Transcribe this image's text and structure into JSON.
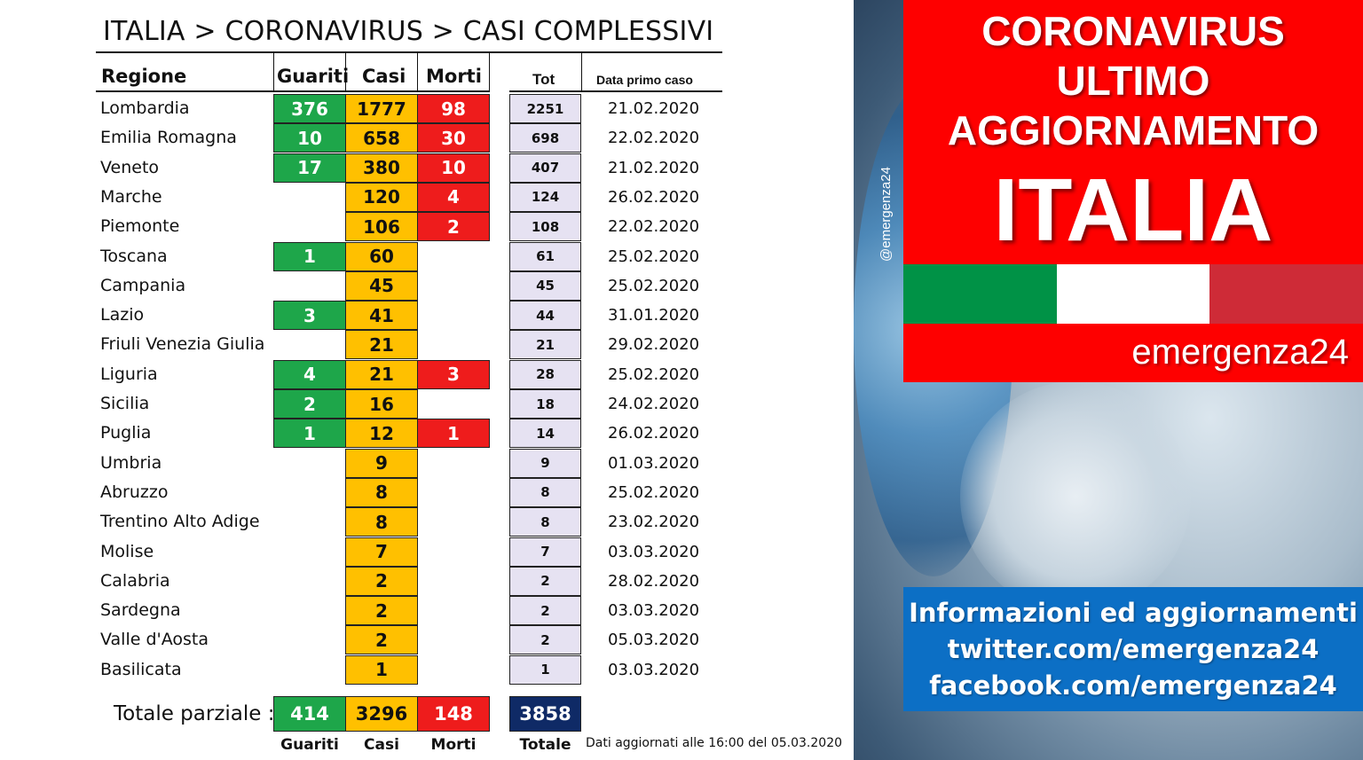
{
  "title": "ITALIA > CORONAVIRUS > CASI COMPLESSIVI",
  "headers": {
    "regione": "Regione",
    "guariti": "Guariti",
    "casi": "Casi",
    "morti": "Morti",
    "tot": "Tot",
    "data": "Data primo caso"
  },
  "rows": [
    {
      "regione": "Lombardia",
      "guariti": "376",
      "casi": "1777",
      "morti": "98",
      "tot": "2251",
      "data": "21.02.2020"
    },
    {
      "regione": "Emilia Romagna",
      "guariti": "10",
      "casi": "658",
      "morti": "30",
      "tot": "698",
      "data": "22.02.2020"
    },
    {
      "regione": "Veneto",
      "guariti": "17",
      "casi": "380",
      "morti": "10",
      "tot": "407",
      "data": "21.02.2020"
    },
    {
      "regione": "Marche",
      "guariti": "",
      "casi": "120",
      "morti": "4",
      "tot": "124",
      "data": "26.02.2020"
    },
    {
      "regione": "Piemonte",
      "guariti": "",
      "casi": "106",
      "morti": "2",
      "tot": "108",
      "data": "22.02.2020"
    },
    {
      "regione": "Toscana",
      "guariti": "1",
      "casi": "60",
      "morti": "",
      "tot": "61",
      "data": "25.02.2020"
    },
    {
      "regione": "Campania",
      "guariti": "",
      "casi": "45",
      "morti": "",
      "tot": "45",
      "data": "25.02.2020"
    },
    {
      "regione": "Lazio",
      "guariti": "3",
      "casi": "41",
      "morti": "",
      "tot": "44",
      "data": "31.01.2020"
    },
    {
      "regione": "Friuli Venezia Giulia",
      "guariti": "",
      "casi": "21",
      "morti": "",
      "tot": "21",
      "data": "29.02.2020"
    },
    {
      "regione": "Liguria",
      "guariti": "4",
      "casi": "21",
      "morti": "3",
      "tot": "28",
      "data": "25.02.2020"
    },
    {
      "regione": "Sicilia",
      "guariti": "2",
      "casi": "16",
      "morti": "",
      "tot": "18",
      "data": "24.02.2020"
    },
    {
      "regione": "Puglia",
      "guariti": "1",
      "casi": "12",
      "morti": "1",
      "tot": "14",
      "data": "26.02.2020"
    },
    {
      "regione": "Umbria",
      "guariti": "",
      "casi": "9",
      "morti": "",
      "tot": "9",
      "data": "01.03.2020"
    },
    {
      "regione": "Abruzzo",
      "guariti": "",
      "casi": "8",
      "morti": "",
      "tot": "8",
      "data": "25.02.2020"
    },
    {
      "regione": "Trentino Alto Adige",
      "guariti": "",
      "casi": "8",
      "morti": "",
      "tot": "8",
      "data": "23.02.2020"
    },
    {
      "regione": "Molise",
      "guariti": "",
      "casi": "7",
      "morti": "",
      "tot": "7",
      "data": "03.03.2020"
    },
    {
      "regione": "Calabria",
      "guariti": "",
      "casi": "2",
      "morti": "",
      "tot": "2",
      "data": "28.02.2020"
    },
    {
      "regione": "Sardegna",
      "guariti": "",
      "casi": "2",
      "morti": "",
      "tot": "2",
      "data": "03.03.2020"
    },
    {
      "regione": "Valle d'Aosta",
      "guariti": "",
      "casi": "2",
      "morti": "",
      "tot": "2",
      "data": "05.03.2020"
    },
    {
      "regione": "Basilicata",
      "guariti": "",
      "casi": "1",
      "morti": "",
      "tot": "1",
      "data": "03.03.2020"
    }
  ],
  "totals": {
    "label": "Totale parziale :",
    "guariti": "414",
    "casi": "3296",
    "morti": "148",
    "totale": "3858",
    "labels": {
      "guariti": "Guariti",
      "casi": "Casi",
      "morti": "Morti",
      "totale": "Totale"
    }
  },
  "note": "Dati aggiornati alle 16:00 del 05.03.2020",
  "watermark": "@emergenza24",
  "banner": {
    "line1": "CORONAVIRUS",
    "line2": "ULTIMO",
    "line3": "AGGIORNAMENTO",
    "line4": "ITALIA",
    "brand": "emergenza24"
  },
  "info": {
    "line1": "Informazioni ed aggiornamenti",
    "line2": "twitter.com/emergenza24",
    "line3": "facebook.com/emergenza24"
  },
  "colors": {
    "guariti": "#1ea64a",
    "casi": "#ffc000",
    "morti": "#ee1c1c",
    "tot": "#e6e2f2",
    "totale": "#0f2a66",
    "flag_green": "#009246",
    "flag_white": "#ffffff",
    "flag_red": "#ce2b37",
    "banner_red": "#fe0000",
    "info_blue": "#0c6fc5"
  }
}
